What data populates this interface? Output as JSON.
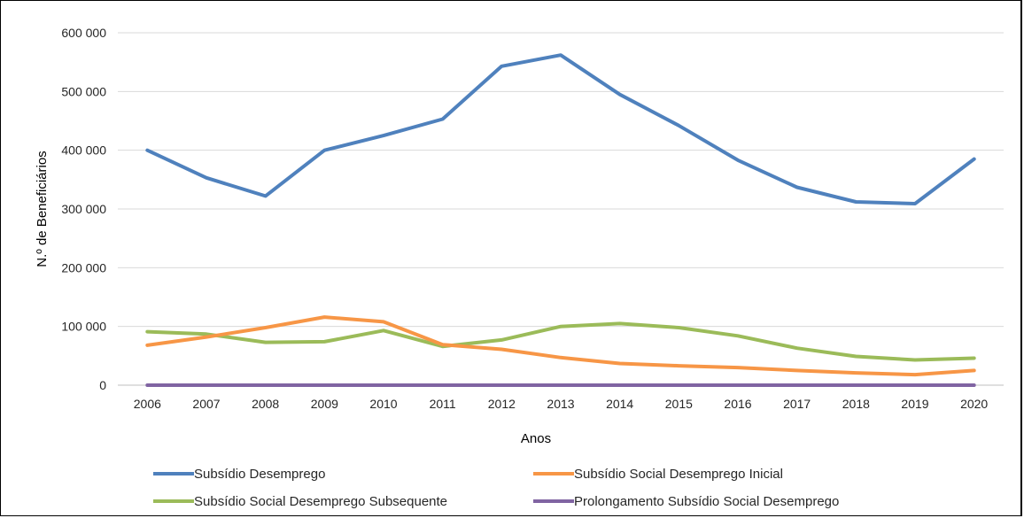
{
  "chart_data": {
    "type": "line",
    "title": "",
    "xlabel": "Anos",
    "ylabel": "N.º de Beneficiários",
    "x": [
      "2006",
      "2007",
      "2008",
      "2009",
      "2010",
      "2011",
      "2012",
      "2013",
      "2014",
      "2015",
      "2016",
      "2017",
      "2018",
      "2019",
      "2020"
    ],
    "ylim": [
      0,
      600000
    ],
    "yticks": [
      0,
      100000,
      200000,
      300000,
      400000,
      500000,
      600000
    ],
    "ytick_labels": [
      "0",
      "100 000",
      "200 000",
      "300 000",
      "400 000",
      "500 000",
      "600 000"
    ],
    "grid": true,
    "legend_position": "bottom",
    "series": [
      {
        "name": "Subsídio Desemprego",
        "color": "#4f81bd",
        "values": [
          400000,
          353000,
          322000,
          400000,
          425000,
          453000,
          543000,
          562000,
          495000,
          442000,
          383000,
          337000,
          312000,
          309000,
          385000
        ]
      },
      {
        "name": "Subsídio Social Desemprego Inicial",
        "color": "#f79646",
        "values": [
          68000,
          82000,
          98000,
          116000,
          108000,
          69000,
          61000,
          47000,
          37000,
          33000,
          30000,
          25000,
          21000,
          18000,
          25000
        ]
      },
      {
        "name": "Subsídio Social Desemprego Subsequente",
        "color": "#9bbb59",
        "values": [
          91000,
          87000,
          73000,
          74000,
          93000,
          66000,
          77000,
          100000,
          105000,
          98000,
          84000,
          63000,
          49000,
          43000,
          46000
        ]
      },
      {
        "name": "Prolongamento Subsídio Social Desemprego",
        "color": "#8064a2",
        "values": [
          0,
          0,
          0,
          0,
          0,
          0,
          0,
          0,
          0,
          0,
          0,
          0,
          0,
          0,
          0
        ]
      }
    ]
  }
}
